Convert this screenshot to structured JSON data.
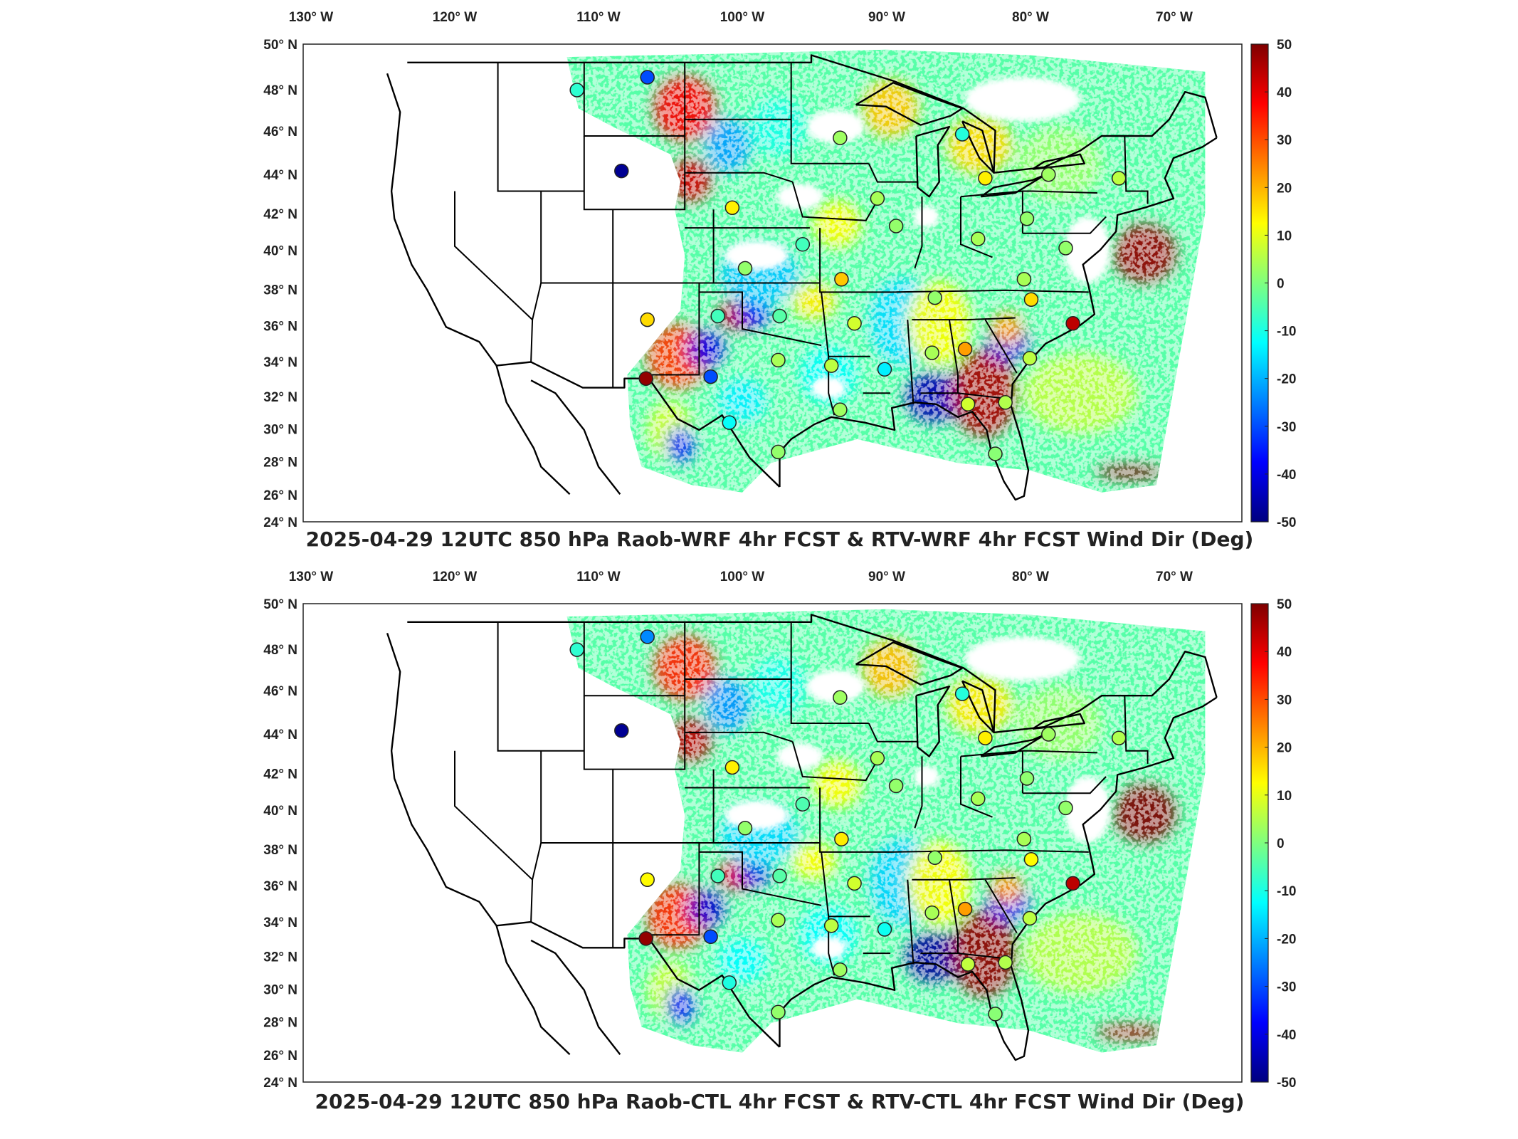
{
  "colors": {
    "colormap": [
      "#00007f",
      "#0000ff",
      "#007fff",
      "#00ffff",
      "#7fff7f",
      "#ffff00",
      "#ff7f00",
      "#ff0000",
      "#7f0000"
    ],
    "frame": "#222222"
  },
  "panels": [
    {
      "title": "2025-04-29 12UTC 850 hPa Raob-WRF 4hr FCST & RTV-WRF 4hr FCST Wind Dir (Deg)",
      "lon_ticks": [
        "130",
        "120",
        "110",
        "100",
        "90",
        "80",
        "70"
      ],
      "lon_suffix": "W",
      "lat_ticks": [
        "50",
        "48",
        "46",
        "44",
        "42",
        "40",
        "38",
        "36",
        "34",
        "32",
        "30",
        "28",
        "26",
        "24"
      ],
      "lat_suffix": "N",
      "colorbar_ticks": [
        "50",
        "40",
        "30",
        "20",
        "10",
        "0",
        "-10",
        "-20",
        "-30",
        "-40",
        "-50"
      ]
    },
    {
      "title": "2025-04-29 12UTC 850 hPa Raob-CTL 4hr FCST & RTV-CTL 4hr FCST Wind Dir (Deg)",
      "lon_ticks": [
        "130",
        "120",
        "110",
        "100",
        "90",
        "80",
        "70"
      ],
      "lon_suffix": "W",
      "lat_ticks": [
        "50",
        "48",
        "46",
        "44",
        "42",
        "40",
        "38",
        "36",
        "34",
        "32",
        "30",
        "28",
        "26",
        "24"
      ],
      "lat_suffix": "N",
      "colorbar_ticks": [
        "50",
        "40",
        "30",
        "20",
        "10",
        "0",
        "-10",
        "-20",
        "-30",
        "-40",
        "-50"
      ]
    }
  ],
  "colorbar": {
    "min": -50,
    "max": 50
  },
  "stations": [
    {
      "lon": -111.5,
      "lat": 47.5,
      "v": -8
    },
    {
      "lon": -106.6,
      "lat": 48.2,
      "v": -30
    },
    {
      "lon": -108.4,
      "lat": 43.1,
      "v": -48
    },
    {
      "lon": -100.7,
      "lat": 41.1,
      "v": 14
    },
    {
      "lon": -99.8,
      "lat": 37.8,
      "v": 2
    },
    {
      "lon": -95.8,
      "lat": 39.1,
      "v": -6
    },
    {
      "lon": -93.2,
      "lat": 44.9,
      "v": 3
    },
    {
      "lon": -90.6,
      "lat": 41.6,
      "v": 4
    },
    {
      "lon": -89.3,
      "lat": 40.1,
      "v": 2
    },
    {
      "lon": -93.1,
      "lat": 37.2,
      "v": 18
    },
    {
      "lon": -92.2,
      "lat": 34.8,
      "v": 8
    },
    {
      "lon": -97.4,
      "lat": 35.2,
      "v": -4
    },
    {
      "lon": -101.7,
      "lat": 35.2,
      "v": -6
    },
    {
      "lon": -106.6,
      "lat": 35.0,
      "v": 16
    },
    {
      "lon": -106.7,
      "lat": 31.8,
      "v": 48
    },
    {
      "lon": -102.2,
      "lat": 31.9,
      "v": -30
    },
    {
      "lon": -97.5,
      "lat": 32.8,
      "v": 4
    },
    {
      "lon": -100.9,
      "lat": 29.4,
      "v": -12
    },
    {
      "lon": -97.5,
      "lat": 27.8,
      "v": 2
    },
    {
      "lon": -93.2,
      "lat": 30.1,
      "v": 3
    },
    {
      "lon": -93.8,
      "lat": 32.5,
      "v": 6
    },
    {
      "lon": -90.1,
      "lat": 32.3,
      "v": -14
    },
    {
      "lon": -86.8,
      "lat": 33.2,
      "v": 4
    },
    {
      "lon": -86.6,
      "lat": 36.2,
      "v": 2
    },
    {
      "lon": -84.5,
      "lat": 33.4,
      "v": 22
    },
    {
      "lon": -84.3,
      "lat": 30.4,
      "v": 8
    },
    {
      "lon": -81.7,
      "lat": 30.5,
      "v": 5
    },
    {
      "lon": -82.4,
      "lat": 27.7,
      "v": 1
    },
    {
      "lon": -80.0,
      "lat": 32.9,
      "v": 6
    },
    {
      "lon": -79.9,
      "lat": 36.1,
      "v": 16
    },
    {
      "lon": -80.4,
      "lat": 37.2,
      "v": 4
    },
    {
      "lon": -77.0,
      "lat": 34.8,
      "v": 44
    },
    {
      "lon": -83.6,
      "lat": 39.4,
      "v": 4
    },
    {
      "lon": -80.2,
      "lat": 40.5,
      "v": 2
    },
    {
      "lon": -83.1,
      "lat": 42.7,
      "v": 14
    },
    {
      "lon": -84.7,
      "lat": 45.1,
      "v": -9
    },
    {
      "lon": -78.7,
      "lat": 42.9,
      "v": 3
    },
    {
      "lon": -73.8,
      "lat": 42.7,
      "v": 6
    },
    {
      "lon": -77.5,
      "lat": 38.9,
      "v": 2
    }
  ]
}
